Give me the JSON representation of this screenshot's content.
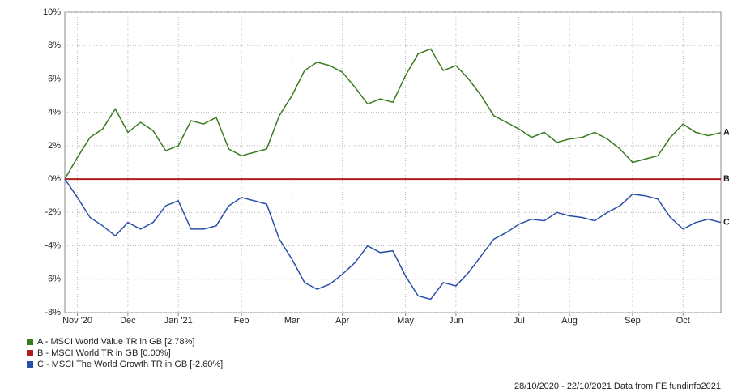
{
  "chart_data": {
    "type": "line",
    "categories": [
      null,
      "Nov '20",
      null,
      null,
      null,
      "Dec",
      null,
      null,
      null,
      "Jan '21",
      null,
      null,
      null,
      null,
      "Feb",
      null,
      null,
      null,
      "Mar",
      null,
      null,
      null,
      "Apr",
      null,
      null,
      null,
      null,
      "May",
      null,
      null,
      null,
      "Jun",
      null,
      null,
      null,
      null,
      "Jul",
      null,
      null,
      null,
      "Aug",
      null,
      null,
      null,
      null,
      "Sep",
      null,
      null,
      null,
      "Oct",
      null,
      null,
      null
    ],
    "series": [
      {
        "name": "A - MSCI World Value TR in GB [2.78%]",
        "label": "A",
        "color": "#3a7a1e",
        "values": [
          0,
          1.3,
          2.5,
          3.0,
          4.2,
          2.8,
          3.4,
          2.9,
          1.7,
          2.0,
          3.5,
          3.3,
          3.7,
          1.8,
          1.4,
          1.6,
          1.8,
          3.8,
          5.0,
          6.5,
          7.0,
          6.8,
          6.4,
          5.5,
          4.5,
          4.8,
          4.6,
          6.2,
          7.5,
          7.8,
          6.5,
          6.8,
          6.0,
          5.0,
          3.8,
          3.4,
          3.0,
          2.5,
          2.8,
          2.2,
          2.4,
          2.5,
          2.8,
          2.4,
          1.8,
          1.0,
          1.2,
          1.4,
          2.5,
          3.3,
          2.8,
          2.6,
          2.78
        ]
      },
      {
        "name": "B - MSCI World TR in GB [0.00%]",
        "label": "B",
        "color": "#b01c1c",
        "values": [
          0,
          0,
          0,
          0,
          0,
          0,
          0,
          0,
          0,
          0,
          0,
          0,
          0,
          0,
          0,
          0,
          0,
          0,
          0,
          0,
          0,
          0,
          0,
          0,
          0,
          0,
          0,
          0,
          0,
          0,
          0,
          0,
          0,
          0,
          0,
          0,
          0,
          0,
          0,
          0,
          0,
          0,
          0,
          0,
          0,
          0,
          0,
          0,
          0,
          0,
          0,
          0,
          0
        ]
      },
      {
        "name": "C - MSCI The World Growth TR in GB [-2.60%]",
        "label": "C",
        "color": "#2a4fa8",
        "values": [
          0,
          -1.1,
          -2.3,
          -2.8,
          -3.4,
          -2.6,
          -3.0,
          -2.6,
          -1.6,
          -1.3,
          -3.0,
          -3.0,
          -2.8,
          -1.6,
          -1.1,
          -1.3,
          -1.5,
          -3.6,
          -4.8,
          -6.2,
          -6.6,
          -6.3,
          -5.7,
          -5.0,
          -4.0,
          -4.4,
          -4.3,
          -5.8,
          -7.0,
          -7.2,
          -6.2,
          -6.4,
          -5.6,
          -4.6,
          -3.6,
          -3.2,
          -2.7,
          -2.4,
          -2.5,
          -2.0,
          -2.2,
          -2.3,
          -2.5,
          -2.0,
          -1.6,
          -0.9,
          -1.0,
          -1.2,
          -2.3,
          -3.0,
          -2.6,
          -2.4,
          -2.6
        ]
      }
    ],
    "ylim": [
      -8,
      10
    ],
    "yticks": [
      {
        "value": -8,
        "label": "-8%"
      },
      {
        "value": -6,
        "label": "-6%"
      },
      {
        "value": -4,
        "label": "-4%"
      },
      {
        "value": -2,
        "label": "-2%"
      },
      {
        "value": 0,
        "label": "0%"
      },
      {
        "value": 2,
        "label": "2%"
      },
      {
        "value": 4,
        "label": "4%"
      },
      {
        "value": 6,
        "label": "6%"
      },
      {
        "value": 8,
        "label": "8%"
      },
      {
        "value": 10,
        "label": "10%"
      }
    ],
    "grid": true,
    "footer": "28/10/2020 - 22/10/2021 Data from FE fundinfo2021"
  }
}
